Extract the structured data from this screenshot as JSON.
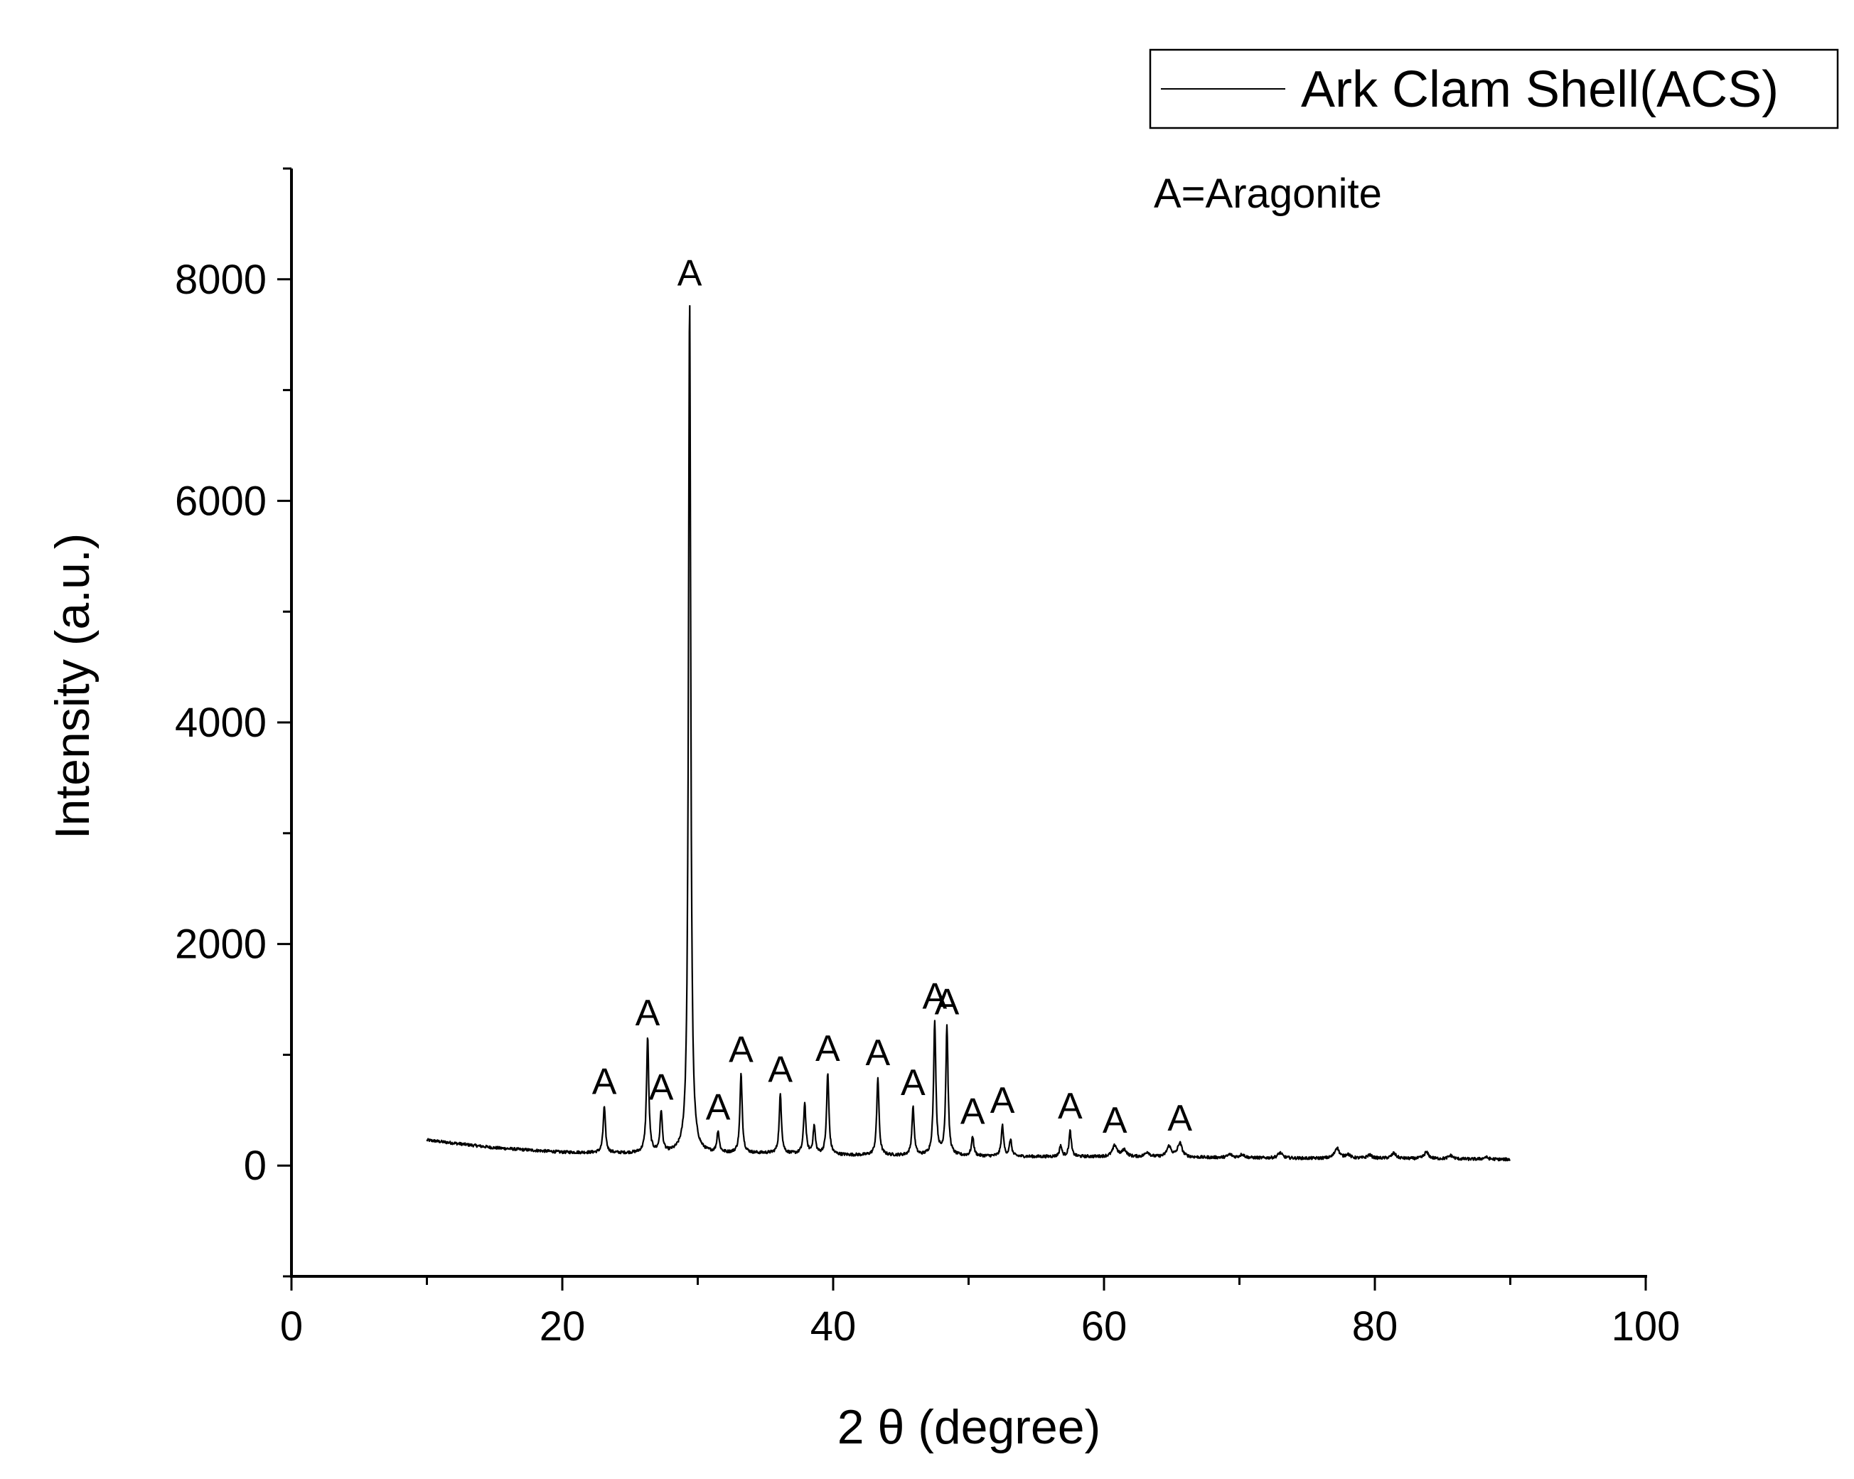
{
  "chart_data": {
    "type": "line",
    "title": "",
    "xlabel": "2 θ (degree)",
    "ylabel": "Intensity (a.u.)",
    "xlim": [
      0,
      100
    ],
    "ylim": [
      -1000,
      9000
    ],
    "xticks": [
      0,
      20,
      40,
      60,
      80,
      100
    ],
    "xtick_labels": [
      "0",
      "20",
      "40",
      "60",
      "80",
      "100"
    ],
    "yticks": [
      0,
      2000,
      4000,
      6000,
      8000
    ],
    "ytick_labels": [
      "0",
      "2000",
      "4000",
      "6000",
      "8000"
    ],
    "grid": false,
    "legend": {
      "position": "top-right",
      "entries": [
        "Ark Clam Shell(ACS)"
      ]
    },
    "annotation": "A=Aragonite",
    "series": [
      {
        "name": "Ark Clam Shell(ACS)",
        "color": "#000000",
        "x_range": [
          10,
          90
        ],
        "background": [
          [
            10,
            230
          ],
          [
            15,
            160
          ],
          [
            20,
            120
          ],
          [
            25,
            110
          ],
          [
            30,
            105
          ],
          [
            35,
            110
          ],
          [
            40,
            95
          ],
          [
            45,
            90
          ],
          [
            50,
            85
          ],
          [
            55,
            80
          ],
          [
            60,
            80
          ],
          [
            65,
            75
          ],
          [
            70,
            70
          ],
          [
            75,
            65
          ],
          [
            80,
            65
          ],
          [
            85,
            60
          ],
          [
            90,
            55
          ]
        ],
        "peaks": [
          {
            "x": 23.1,
            "y": 530,
            "label": "A"
          },
          {
            "x": 26.3,
            "y": 1150,
            "label": "A"
          },
          {
            "x": 27.3,
            "y": 480,
            "label": "A"
          },
          {
            "x": 29.4,
            "y": 7830,
            "label": "A"
          },
          {
            "x": 31.5,
            "y": 300,
            "label": "A"
          },
          {
            "x": 33.2,
            "y": 820,
            "label": "A"
          },
          {
            "x": 36.1,
            "y": 640,
            "label": "A"
          },
          {
            "x": 37.9,
            "y": 560
          },
          {
            "x": 38.6,
            "y": 350
          },
          {
            "x": 39.6,
            "y": 830,
            "label": "A"
          },
          {
            "x": 43.3,
            "y": 790,
            "label": "A"
          },
          {
            "x": 45.9,
            "y": 520,
            "label": "A"
          },
          {
            "x": 47.5,
            "y": 1300,
            "label": "A"
          },
          {
            "x": 48.4,
            "y": 1250,
            "label": "A"
          },
          {
            "x": 50.3,
            "y": 260,
            "label": "A"
          },
          {
            "x": 52.5,
            "y": 360,
            "label": "A"
          },
          {
            "x": 53.1,
            "y": 230
          },
          {
            "x": 56.8,
            "y": 180
          },
          {
            "x": 57.5,
            "y": 310,
            "label": "A"
          },
          {
            "x": 60.8,
            "y": 180,
            "label": "A"
          },
          {
            "x": 61.5,
            "y": 140
          },
          {
            "x": 63.2,
            "y": 120
          },
          {
            "x": 64.8,
            "y": 170
          },
          {
            "x": 65.6,
            "y": 200,
            "label": "A"
          },
          {
            "x": 69.3,
            "y": 100
          },
          {
            "x": 70.2,
            "y": 100
          },
          {
            "x": 73.0,
            "y": 115
          },
          {
            "x": 77.2,
            "y": 160
          },
          {
            "x": 78.0,
            "y": 100
          },
          {
            "x": 79.6,
            "y": 95
          },
          {
            "x": 81.4,
            "y": 110
          },
          {
            "x": 83.8,
            "y": 120
          },
          {
            "x": 85.6,
            "y": 90
          },
          {
            "x": 88.2,
            "y": 75
          }
        ]
      }
    ]
  }
}
